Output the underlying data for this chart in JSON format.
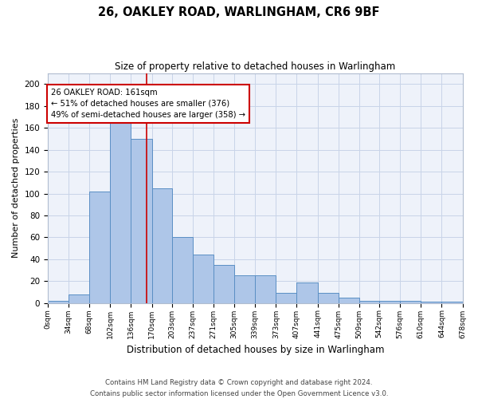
{
  "title": "26, OAKLEY ROAD, WARLINGHAM, CR6 9BF",
  "subtitle": "Size of property relative to detached houses in Warlingham",
  "xlabel": "Distribution of detached houses by size in Warlingham",
  "ylabel": "Number of detached properties",
  "bin_edges": [
    0,
    34,
    68,
    102,
    136,
    170,
    203,
    237,
    271,
    305,
    339,
    373,
    407,
    441,
    475,
    509,
    542,
    576,
    610,
    644,
    678
  ],
  "bar_heights": [
    2,
    8,
    102,
    167,
    150,
    105,
    60,
    44,
    35,
    25,
    25,
    9,
    19,
    9,
    5,
    2,
    2,
    2,
    1,
    1
  ],
  "bar_color": "#aec6e8",
  "bar_edge_color": "#5a8fc4",
  "grid_color": "#c8d4e8",
  "bg_color": "#eef2fa",
  "red_line_x": 161,
  "annotation_text": "26 OAKLEY ROAD: 161sqm\n← 51% of detached houses are smaller (376)\n49% of semi-detached houses are larger (358) →",
  "annotation_box_facecolor": "#ffffff",
  "annotation_box_edgecolor": "#cc0000",
  "ylim": [
    0,
    210
  ],
  "yticks": [
    0,
    20,
    40,
    60,
    80,
    100,
    120,
    140,
    160,
    180,
    200
  ],
  "footer_line1": "Contains HM Land Registry data © Crown copyright and database right 2024.",
  "footer_line2": "Contains public sector information licensed under the Open Government Licence v3.0."
}
